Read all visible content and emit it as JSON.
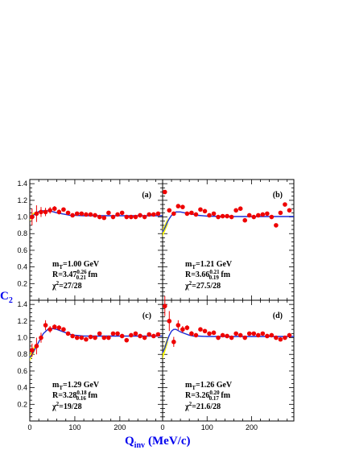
{
  "figure": {
    "ylabel_main": "C",
    "ylabel_sub": "2",
    "xlabel_main": "Q",
    "xlabel_sub": "inv",
    "xlabel_unit": "(MeV/c)"
  },
  "colors": {
    "axis_title": "#0000ee",
    "fit": "#1a2bd6",
    "data_points": "#ee0000",
    "band": "#ffff00"
  },
  "chart_data": [
    {
      "type": "scatter",
      "panel": "(a)",
      "xlim": [
        0,
        295
      ],
      "ylim": [
        0,
        1.45
      ],
      "yticks": [
        "0.2",
        "0.4",
        "0.6",
        "0.8",
        "1.0",
        "1.2",
        "1.4"
      ],
      "xticks": [],
      "annotation": {
        "mt_label": "m",
        "mt_sub": "T",
        "mt_value": "=1.00 GeV",
        "r_label": "R=3.47",
        "r_sup": "0.26",
        "r_sub": "0.21",
        "r_unit": " fm",
        "chi_label": "χ",
        "chi_sup": "2",
        "chi_value": "=27/28"
      },
      "points": {
        "x": [
          5,
          15,
          25,
          35,
          45,
          55,
          65,
          75,
          85,
          95,
          105,
          115,
          125,
          135,
          145,
          155,
          165,
          175,
          185,
          195,
          205,
          215,
          225,
          235,
          245,
          255,
          265,
          275,
          285
        ],
        "y": [
          1.0,
          1.04,
          1.06,
          1.06,
          1.08,
          1.1,
          1.06,
          1.09,
          1.05,
          1.02,
          1.04,
          1.04,
          1.03,
          1.03,
          1.02,
          1.0,
          0.99,
          1.05,
          1.0,
          1.03,
          1.05,
          1.0,
          1.0,
          1.0,
          1.02,
          1.0,
          1.03,
          1.03,
          1.04
        ],
        "err": [
          0.1,
          0.1,
          0.06,
          0.05,
          0.04,
          0.03,
          0.03,
          0.02,
          0.02,
          0.02,
          0.02,
          0.02,
          0.02,
          0.02,
          0.02,
          0.02,
          0.02,
          0.02,
          0.02,
          0.02,
          0.02,
          0.02,
          0.02,
          0.02,
          0.02,
          0.02,
          0.02,
          0.02,
          0.02
        ]
      },
      "fit": {
        "x": [
          0,
          5,
          10,
          15,
          20,
          30,
          40,
          50,
          60,
          70,
          80,
          90,
          100,
          120,
          150,
          200,
          250,
          295
        ],
        "y": [
          0.98,
          1.0,
          1.03,
          1.05,
          1.065,
          1.075,
          1.075,
          1.065,
          1.05,
          1.04,
          1.03,
          1.02,
          1.02,
          1.015,
          1.015,
          1.015,
          1.015,
          1.015
        ]
      },
      "band": {
        "x": [
          0,
          4,
          8,
          12
        ],
        "y_low": [
          0.95,
          0.98,
          1.01,
          1.03
        ],
        "y_high": [
          1.01,
          1.03,
          1.05,
          1.06
        ]
      }
    },
    {
      "type": "scatter",
      "panel": "(b)",
      "xlim": [
        0,
        295
      ],
      "ylim": [
        0,
        1.45
      ],
      "yticks": [],
      "xticks": [],
      "annotation": {
        "mt_label": "m",
        "mt_sub": "T",
        "mt_value": "=1.21 GeV",
        "r_label": "R=3.66",
        "r_sup": "0.21",
        "r_sub": "0.19",
        "r_unit": " fm",
        "chi_label": "χ",
        "chi_sup": "2",
        "chi_value": "=27.5/28"
      },
      "points": {
        "x": [
          5,
          15,
          25,
          35,
          45,
          55,
          65,
          75,
          85,
          95,
          105,
          115,
          125,
          135,
          145,
          155,
          165,
          175,
          185,
          195,
          205,
          215,
          225,
          235,
          245,
          255,
          265,
          275,
          285
        ],
        "y": [
          1.3,
          1.08,
          1.04,
          1.13,
          1.12,
          1.04,
          1.05,
          1.03,
          1.09,
          1.07,
          1.02,
          1.04,
          1.0,
          1.01,
          1.01,
          1.0,
          1.08,
          1.1,
          0.96,
          1.02,
          1.0,
          1.02,
          1.03,
          1.04,
          1.0,
          0.9,
          1.05,
          1.15,
          1.08
        ]
      },
      "fit": {
        "x": [
          0,
          5,
          10,
          15,
          20,
          30,
          40,
          50,
          60,
          70,
          80,
          100,
          150,
          200,
          250,
          295
        ],
        "y": [
          0.82,
          0.87,
          0.93,
          0.98,
          1.02,
          1.06,
          1.06,
          1.05,
          1.04,
          1.03,
          1.02,
          1.01,
          1.005,
          1.005,
          1.005,
          1.005
        ]
      },
      "band": {
        "x": [
          0,
          4,
          8,
          12
        ],
        "y_low": [
          0.76,
          0.81,
          0.86,
          0.91
        ],
        "y_high": [
          0.86,
          0.9,
          0.95,
          0.99
        ]
      }
    },
    {
      "type": "scatter",
      "panel": "(c)",
      "xlim": [
        0,
        295
      ],
      "ylim": [
        0,
        1.45
      ],
      "yticks": [
        "0.2",
        "0.4",
        "0.6",
        "0.8",
        "1.0",
        "1.2",
        "1.4"
      ],
      "xticks": [
        "0",
        "100",
        "200"
      ],
      "annotation": {
        "mt_label": "m",
        "mt_sub": "T",
        "mt_value": "=1.29 GeV",
        "r_label": "R=3.28",
        "r_sup": "0.18",
        "r_sub": "0.16",
        "r_unit": " fm",
        "chi_label": "χ",
        "chi_sup": "2",
        "chi_value": "=19/28"
      },
      "points": {
        "x": [
          5,
          15,
          25,
          35,
          45,
          55,
          65,
          75,
          85,
          95,
          105,
          115,
          125,
          135,
          145,
          155,
          165,
          175,
          185,
          195,
          205,
          215,
          225,
          235,
          245,
          255,
          265,
          275,
          285
        ],
        "y": [
          0.85,
          0.9,
          1.0,
          1.15,
          1.1,
          1.13,
          1.12,
          1.1,
          1.05,
          1.02,
          1.0,
          1.0,
          0.98,
          1.01,
          1.0,
          1.05,
          1.0,
          1.0,
          1.05,
          1.05,
          1.02,
          0.97,
          1.03,
          1.05,
          1.02,
          1.0,
          1.04,
          1.02,
          1.04
        ],
        "err": [
          0.08,
          0.1,
          0.06,
          0.06,
          0.04,
          0.03,
          0.03,
          0.02,
          0.02,
          0.02,
          0.02,
          0.02,
          0.02,
          0.02,
          0.02,
          0.02,
          0.02,
          0.02,
          0.02,
          0.02,
          0.02,
          0.02,
          0.02,
          0.02,
          0.02,
          0.02,
          0.02,
          0.02,
          0.02
        ]
      },
      "fit": {
        "x": [
          0,
          5,
          10,
          15,
          20,
          30,
          40,
          50,
          60,
          70,
          80,
          90,
          100,
          120,
          150,
          200,
          250,
          295
        ],
        "y": [
          0.76,
          0.8,
          0.85,
          0.9,
          0.95,
          1.05,
          1.1,
          1.11,
          1.1,
          1.08,
          1.06,
          1.04,
          1.03,
          1.02,
          1.02,
          1.02,
          1.02,
          1.02
        ]
      },
      "band": {
        "x": [
          0,
          4,
          8,
          12
        ],
        "y_low": [
          0.72,
          0.76,
          0.8,
          0.85
        ],
        "y_high": [
          0.8,
          0.84,
          0.88,
          0.92
        ]
      }
    },
    {
      "type": "scatter",
      "panel": "(d)",
      "xlim": [
        0,
        295
      ],
      "ylim": [
        0,
        1.45
      ],
      "yticks": [],
      "xticks": [
        "0",
        "100",
        "200"
      ],
      "annotation": {
        "mt_label": "m",
        "mt_sub": "T",
        "mt_value": "=1.26 GeV",
        "r_label": "R=3.26",
        "r_sup": "0.20",
        "r_sub": "0.17",
        "r_unit": " fm",
        "chi_label": "χ",
        "chi_sup": "2",
        "chi_value": "=21.6/28"
      },
      "points": {
        "x": [
          5,
          15,
          25,
          35,
          45,
          55,
          65,
          75,
          85,
          95,
          105,
          115,
          125,
          135,
          145,
          155,
          165,
          175,
          185,
          195,
          205,
          215,
          225,
          235,
          245,
          255,
          265,
          275,
          285
        ],
        "y": [
          1.38,
          1.2,
          0.95,
          1.15,
          1.1,
          1.12,
          1.05,
          1.03,
          1.1,
          1.08,
          1.05,
          1.06,
          1.0,
          1.03,
          1.02,
          1.0,
          1.05,
          1.03,
          1.0,
          1.05,
          1.05,
          1.03,
          1.05,
          1.02,
          1.03,
          1.0,
          0.98,
          1.0,
          1.03
        ],
        "err": [
          0.12,
          0.12,
          0.06,
          0.06,
          0.04,
          0.03,
          0.03,
          0.02,
          0.02,
          0.02,
          0.02,
          0.02,
          0.02,
          0.02,
          0.02,
          0.02,
          0.02,
          0.02,
          0.02,
          0.02,
          0.02,
          0.02,
          0.02,
          0.02,
          0.02,
          0.02,
          0.02,
          0.02,
          0.02
        ]
      },
      "fit": {
        "x": [
          0,
          5,
          10,
          15,
          20,
          25,
          30,
          40,
          50,
          60,
          70,
          80,
          100,
          150,
          200,
          250,
          295
        ],
        "y": [
          0.82,
          0.88,
          0.96,
          1.03,
          1.08,
          1.1,
          1.1,
          1.07,
          1.05,
          1.03,
          1.02,
          1.02,
          1.015,
          1.015,
          1.015,
          1.015,
          1.015
        ]
      },
      "band": {
        "x": [
          0,
          4,
          8,
          12
        ],
        "y_low": [
          0.74,
          0.8,
          0.87,
          0.94
        ],
        "y_high": [
          0.84,
          0.9,
          0.97,
          1.02
        ]
      }
    }
  ]
}
